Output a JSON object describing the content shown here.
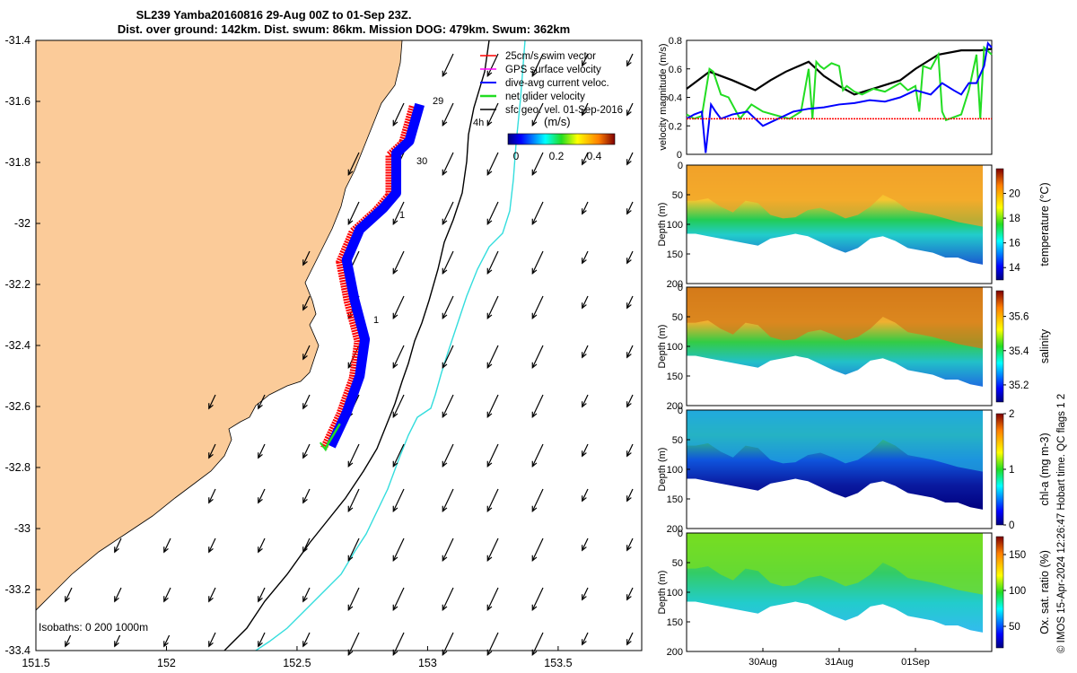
{
  "title": {
    "line1": "SL239 Yamba20160816 29-Aug 00Z to 01-Sep 23Z.",
    "line2": "Dist. over ground: 142km. Dist. swum: 86km. Mission DOG: 479km. Swum: 362km"
  },
  "side_note": "© IMOS 15-Apr-2024 12:26:47 Hobart time. QC flags 1  2",
  "colors": {
    "land": "#fbcb99",
    "swim_vector": "#ff0000",
    "gps_velocity": "#ff00ff",
    "dive_avg": "#0000ff",
    "net_glider": "#22dd22",
    "sfc_geo": "#000000",
    "isobath_200": "#000000",
    "isobath_1000": "#33dddd"
  },
  "map": {
    "legend": [
      {
        "key": "swim",
        "label": "25cm/s swim vector"
      },
      {
        "key": "gps",
        "label": "GPS surface velocity"
      },
      {
        "key": "dive",
        "label": "dive-avg current veloc."
      },
      {
        "key": "net",
        "label": "net glider velocity"
      },
      {
        "key": "geo",
        "label": "sfc geo. vel. 01-Sep-2016"
      }
    ],
    "colorbar_unit": "(m/s)",
    "colorbar_ticks": [
      "0",
      "0.2",
      "0.4"
    ],
    "isobaths_label": "Isobaths: 0   200   1000m",
    "track_day_labels": [
      "29",
      "30",
      "1",
      "1"
    ],
    "speed_label": "4h"
  },
  "chart_data": [
    {
      "type": "map",
      "x_ticks": [
        "151.5",
        "152",
        "152.5",
        "153",
        "153.5"
      ],
      "y_ticks": [
        "-31.4",
        "-31.6",
        "-31.8",
        "-32",
        "-32.2",
        "-32.4",
        "-32.6",
        "-32.8",
        "-33",
        "-33.2",
        "-33.4"
      ],
      "xlim": [
        151.5,
        153.82
      ],
      "ylim": [
        -33.4,
        -31.4
      ],
      "glider_track_lon_lat": [
        [
          152.97,
          -31.61
        ],
        [
          152.93,
          -31.73
        ],
        [
          152.88,
          -31.77
        ],
        [
          152.88,
          -31.9
        ],
        [
          152.83,
          -31.95
        ],
        [
          152.74,
          -32.02
        ],
        [
          152.69,
          -32.12
        ],
        [
          152.72,
          -32.25
        ],
        [
          152.76,
          -32.38
        ],
        [
          152.74,
          -32.5
        ],
        [
          152.69,
          -32.62
        ],
        [
          152.63,
          -32.73
        ]
      ]
    },
    {
      "type": "line",
      "ylabel": "velocity magnitude (m/s)",
      "ylim": [
        0,
        0.8
      ],
      "y_ticks": [
        "0",
        "0.2",
        "0.4",
        "0.6",
        "0.8"
      ],
      "x_range_days": [
        0,
        4
      ],
      "series": [
        {
          "key": "black",
          "color": "#000000",
          "x": [
            0,
            0.3,
            0.6,
            0.9,
            1.1,
            1.3,
            1.6,
            1.8,
            2.0,
            2.2,
            2.5,
            2.8,
            3.0,
            3.3,
            3.6,
            3.85,
            4.0
          ],
          "y": [
            0.46,
            0.58,
            0.52,
            0.45,
            0.52,
            0.58,
            0.65,
            0.55,
            0.48,
            0.42,
            0.47,
            0.52,
            0.6,
            0.7,
            0.73,
            0.73,
            0.74
          ]
        },
        {
          "key": "green",
          "color": "#22dd22",
          "x": [
            0,
            0.1,
            0.2,
            0.3,
            0.35,
            0.45,
            0.55,
            0.7,
            0.85,
            1.0,
            1.2,
            1.35,
            1.5,
            1.6,
            1.65,
            1.7,
            1.75,
            1.8,
            1.9,
            2.0,
            2.05,
            2.1,
            2.2,
            2.3,
            2.45,
            2.6,
            2.8,
            2.9,
            3.0,
            3.05,
            3.1,
            3.2,
            3.3,
            3.35,
            3.4,
            3.5,
            3.6,
            3.7,
            3.8,
            3.85,
            3.9,
            4.0
          ],
          "y": [
            0.28,
            0.25,
            0.27,
            0.6,
            0.58,
            0.42,
            0.4,
            0.25,
            0.35,
            0.3,
            0.27,
            0.25,
            0.3,
            0.6,
            0.25,
            0.65,
            0.62,
            0.6,
            0.64,
            0.62,
            0.45,
            0.48,
            0.44,
            0.42,
            0.46,
            0.44,
            0.5,
            0.45,
            0.48,
            0.3,
            0.62,
            0.6,
            0.7,
            0.3,
            0.24,
            0.26,
            0.28,
            0.45,
            0.7,
            0.25,
            0.75,
            0.7
          ]
        },
        {
          "key": "blue",
          "color": "#0000ff",
          "x": [
            0,
            0.1,
            0.2,
            0.25,
            0.32,
            0.38,
            0.45,
            0.6,
            0.8,
            1.0,
            1.2,
            1.4,
            1.6,
            1.8,
            2.0,
            2.2,
            2.4,
            2.6,
            2.8,
            3.0,
            3.2,
            3.35,
            3.5,
            3.6,
            3.7,
            3.8,
            3.9,
            3.95,
            4.0
          ],
          "y": [
            0.25,
            0.28,
            0.3,
            0.01,
            0.35,
            0.3,
            0.25,
            0.28,
            0.3,
            0.2,
            0.25,
            0.3,
            0.32,
            0.33,
            0.35,
            0.36,
            0.38,
            0.37,
            0.4,
            0.45,
            0.42,
            0.5,
            0.45,
            0.42,
            0.5,
            0.5,
            0.62,
            0.78,
            0.75
          ]
        },
        {
          "key": "red",
          "color": "#ff0000",
          "x": [
            0,
            4
          ],
          "y": [
            0.25,
            0.25
          ]
        }
      ]
    },
    {
      "type": "heatmap",
      "quantity": "temperature (°C)",
      "ylabel": "Depth (m)",
      "y_ticks": [
        "0",
        "50",
        "100",
        "150",
        "200"
      ],
      "colorbar_ticks": [
        "14",
        "16",
        "18",
        "20"
      ],
      "colorbar_range": [
        13,
        22
      ]
    },
    {
      "type": "heatmap",
      "quantity": "salinity",
      "ylabel": "Depth (m)",
      "y_ticks": [
        "0",
        "50",
        "100",
        "150",
        "200"
      ],
      "colorbar_ticks": [
        "35.2",
        "35.4",
        "35.6"
      ],
      "colorbar_range": [
        35.1,
        35.75
      ]
    },
    {
      "type": "heatmap",
      "quantity": "chl-a (mg m-3)",
      "ylabel": "Depth (m)",
      "y_ticks": [
        "0",
        "50",
        "100",
        "150",
        "200"
      ],
      "colorbar_ticks": [
        "0",
        "1",
        "2"
      ],
      "colorbar_range": [
        0,
        2
      ]
    },
    {
      "type": "heatmap",
      "quantity": "Ox. sat. ratio (%)",
      "ylabel": "Depth (m)",
      "y_ticks": [
        "0",
        "50",
        "100",
        "150",
        "200"
      ],
      "colorbar_ticks": [
        "50",
        "100",
        "150"
      ],
      "colorbar_range": [
        20,
        175
      ],
      "x_ticks": [
        "30Aug",
        "31Aug",
        "01Sep"
      ]
    }
  ]
}
